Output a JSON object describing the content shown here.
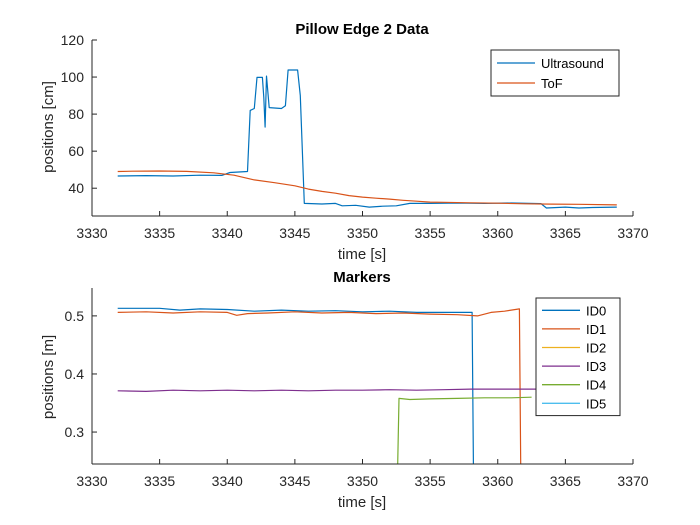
{
  "chart_data": [
    {
      "type": "line",
      "title": "Pillow Edge 2 Data",
      "xlabel": "time [s]",
      "ylabel": "positions [cm]",
      "xlim": [
        3330,
        3370
      ],
      "ylim": [
        25,
        120
      ],
      "xticks": [
        3330,
        3335,
        3340,
        3345,
        3350,
        3355,
        3360,
        3365,
        3370
      ],
      "yticks": [
        40,
        60,
        80,
        100,
        120
      ],
      "legend_position": "top-right",
      "series": [
        {
          "name": "Ultrasound",
          "color": "#0072BD",
          "points": [
            [
              3331.9,
              46.6
            ],
            [
              3334,
              46.8
            ],
            [
              3336,
              46.6
            ],
            [
              3338,
              47.0
            ],
            [
              3339.6,
              46.9
            ],
            [
              3340.2,
              48.5
            ],
            [
              3341.5,
              49.0
            ],
            [
              3341.7,
              82
            ],
            [
              3342.0,
              83
            ],
            [
              3342.2,
              99.8
            ],
            [
              3342.6,
              99.8
            ],
            [
              3342.7,
              89
            ],
            [
              3342.8,
              73
            ],
            [
              3342.9,
              100.5
            ],
            [
              3343.1,
              83.5
            ],
            [
              3344.0,
              83
            ],
            [
              3344.3,
              84.5
            ],
            [
              3344.5,
              103.8
            ],
            [
              3345.2,
              103.8
            ],
            [
              3345.4,
              90
            ],
            [
              3345.7,
              31.8
            ],
            [
              3347,
              31.5
            ],
            [
              3348,
              31.8
            ],
            [
              3348.5,
              30.5
            ],
            [
              3349.5,
              30.8
            ],
            [
              3350.5,
              29.8
            ],
            [
              3351.5,
              30.3
            ],
            [
              3352.5,
              30.5
            ],
            [
              3353.5,
              31.8
            ],
            [
              3355,
              31.8
            ],
            [
              3357,
              32.0
            ],
            [
              3359,
              31.8
            ],
            [
              3361,
              32.0
            ],
            [
              3363.2,
              31.7
            ],
            [
              3363.6,
              29.3
            ],
            [
              3365,
              29.8
            ],
            [
              3366,
              29.3
            ],
            [
              3367,
              29.6
            ],
            [
              3368.8,
              29.8
            ]
          ]
        },
        {
          "name": "ToF",
          "color": "#D95319",
          "points": [
            [
              3331.9,
              49.0
            ],
            [
              3333,
              49.2
            ],
            [
              3335,
              49.3
            ],
            [
              3337,
              49.1
            ],
            [
              3339,
              48.3
            ],
            [
              3340.5,
              47.0
            ],
            [
              3342,
              44.5
            ],
            [
              3343.5,
              43.0
            ],
            [
              3345,
              41.3
            ],
            [
              3346,
              39.5
            ],
            [
              3347,
              38.3
            ],
            [
              3348,
              37.3
            ],
            [
              3349,
              36.0
            ],
            [
              3350,
              35.2
            ],
            [
              3351,
              34.6
            ],
            [
              3352,
              34.1
            ],
            [
              3353,
              33.5
            ],
            [
              3354,
              33.0
            ],
            [
              3355,
              32.5
            ],
            [
              3356,
              32.4
            ],
            [
              3358,
              32.1
            ],
            [
              3360,
              31.9
            ],
            [
              3362,
              31.6
            ],
            [
              3364,
              31.4
            ],
            [
              3366,
              31.3
            ],
            [
              3368.8,
              31.0
            ]
          ]
        }
      ]
    },
    {
      "type": "line",
      "title": "Markers",
      "xlabel": "time [s]",
      "ylabel": "positions [m]",
      "xlim": [
        3330,
        3370
      ],
      "ylim": [
        0.245,
        0.548
      ],
      "xticks": [
        3330,
        3335,
        3340,
        3345,
        3350,
        3355,
        3360,
        3365,
        3370
      ],
      "yticks": [
        0.3,
        0.4,
        0.5
      ],
      "legend_position": "top-right",
      "series": [
        {
          "name": "ID0",
          "color": "#0072BD",
          "points": [
            [
              3331.9,
              0.513
            ],
            [
              3335,
              0.513
            ],
            [
              3336.5,
              0.51
            ],
            [
              3338,
              0.512
            ],
            [
              3340,
              0.511
            ],
            [
              3342,
              0.508
            ],
            [
              3344,
              0.51
            ],
            [
              3346,
              0.508
            ],
            [
              3348,
              0.509
            ],
            [
              3350,
              0.507
            ],
            [
              3352,
              0.508
            ],
            [
              3354,
              0.506
            ],
            [
              3356,
              0.506
            ],
            [
              3358.1,
              0.506
            ],
            [
              3358.2,
              0.245
            ]
          ]
        },
        {
          "name": "ID1",
          "color": "#D95319",
          "points": [
            [
              3331.9,
              0.506
            ],
            [
              3334,
              0.507
            ],
            [
              3336,
              0.505
            ],
            [
              3338,
              0.507
            ],
            [
              3340,
              0.506
            ],
            [
              3340.7,
              0.501
            ],
            [
              3341.5,
              0.504
            ],
            [
              3343,
              0.505
            ],
            [
              3345,
              0.507
            ],
            [
              3347,
              0.505
            ],
            [
              3349,
              0.506
            ],
            [
              3351,
              0.504
            ],
            [
              3353,
              0.505
            ],
            [
              3355,
              0.503
            ],
            [
              3357,
              0.502
            ],
            [
              3358.5,
              0.5
            ],
            [
              3359.5,
              0.506
            ],
            [
              3360.5,
              0.508
            ],
            [
              3361.6,
              0.512
            ],
            [
              3361.7,
              0.245
            ]
          ]
        },
        {
          "name": "ID2",
          "color": "#EDB120",
          "points": []
        },
        {
          "name": "ID3",
          "color": "#7E2F8E",
          "points": [
            [
              3331.9,
              0.371
            ],
            [
              3334,
              0.37
            ],
            [
              3336,
              0.372
            ],
            [
              3338,
              0.371
            ],
            [
              3340,
              0.372
            ],
            [
              3342,
              0.371
            ],
            [
              3344,
              0.372
            ],
            [
              3346,
              0.371
            ],
            [
              3348,
              0.372
            ],
            [
              3350,
              0.372
            ],
            [
              3352,
              0.373
            ],
            [
              3354,
              0.372
            ],
            [
              3356,
              0.373
            ],
            [
              3358,
              0.374
            ],
            [
              3360,
              0.374
            ],
            [
              3362,
              0.374
            ],
            [
              3363.4,
              0.374
            ]
          ]
        },
        {
          "name": "ID4",
          "color": "#77AC30",
          "points": [
            [
              3352.6,
              0.245
            ],
            [
              3352.7,
              0.358
            ],
            [
              3353.5,
              0.356
            ],
            [
              3355,
              0.357
            ],
            [
              3357,
              0.358
            ],
            [
              3359,
              0.359
            ],
            [
              3361,
              0.359
            ],
            [
              3362.5,
              0.36
            ]
          ]
        },
        {
          "name": "ID5",
          "color": "#4DBEEE",
          "points": []
        }
      ]
    }
  ]
}
